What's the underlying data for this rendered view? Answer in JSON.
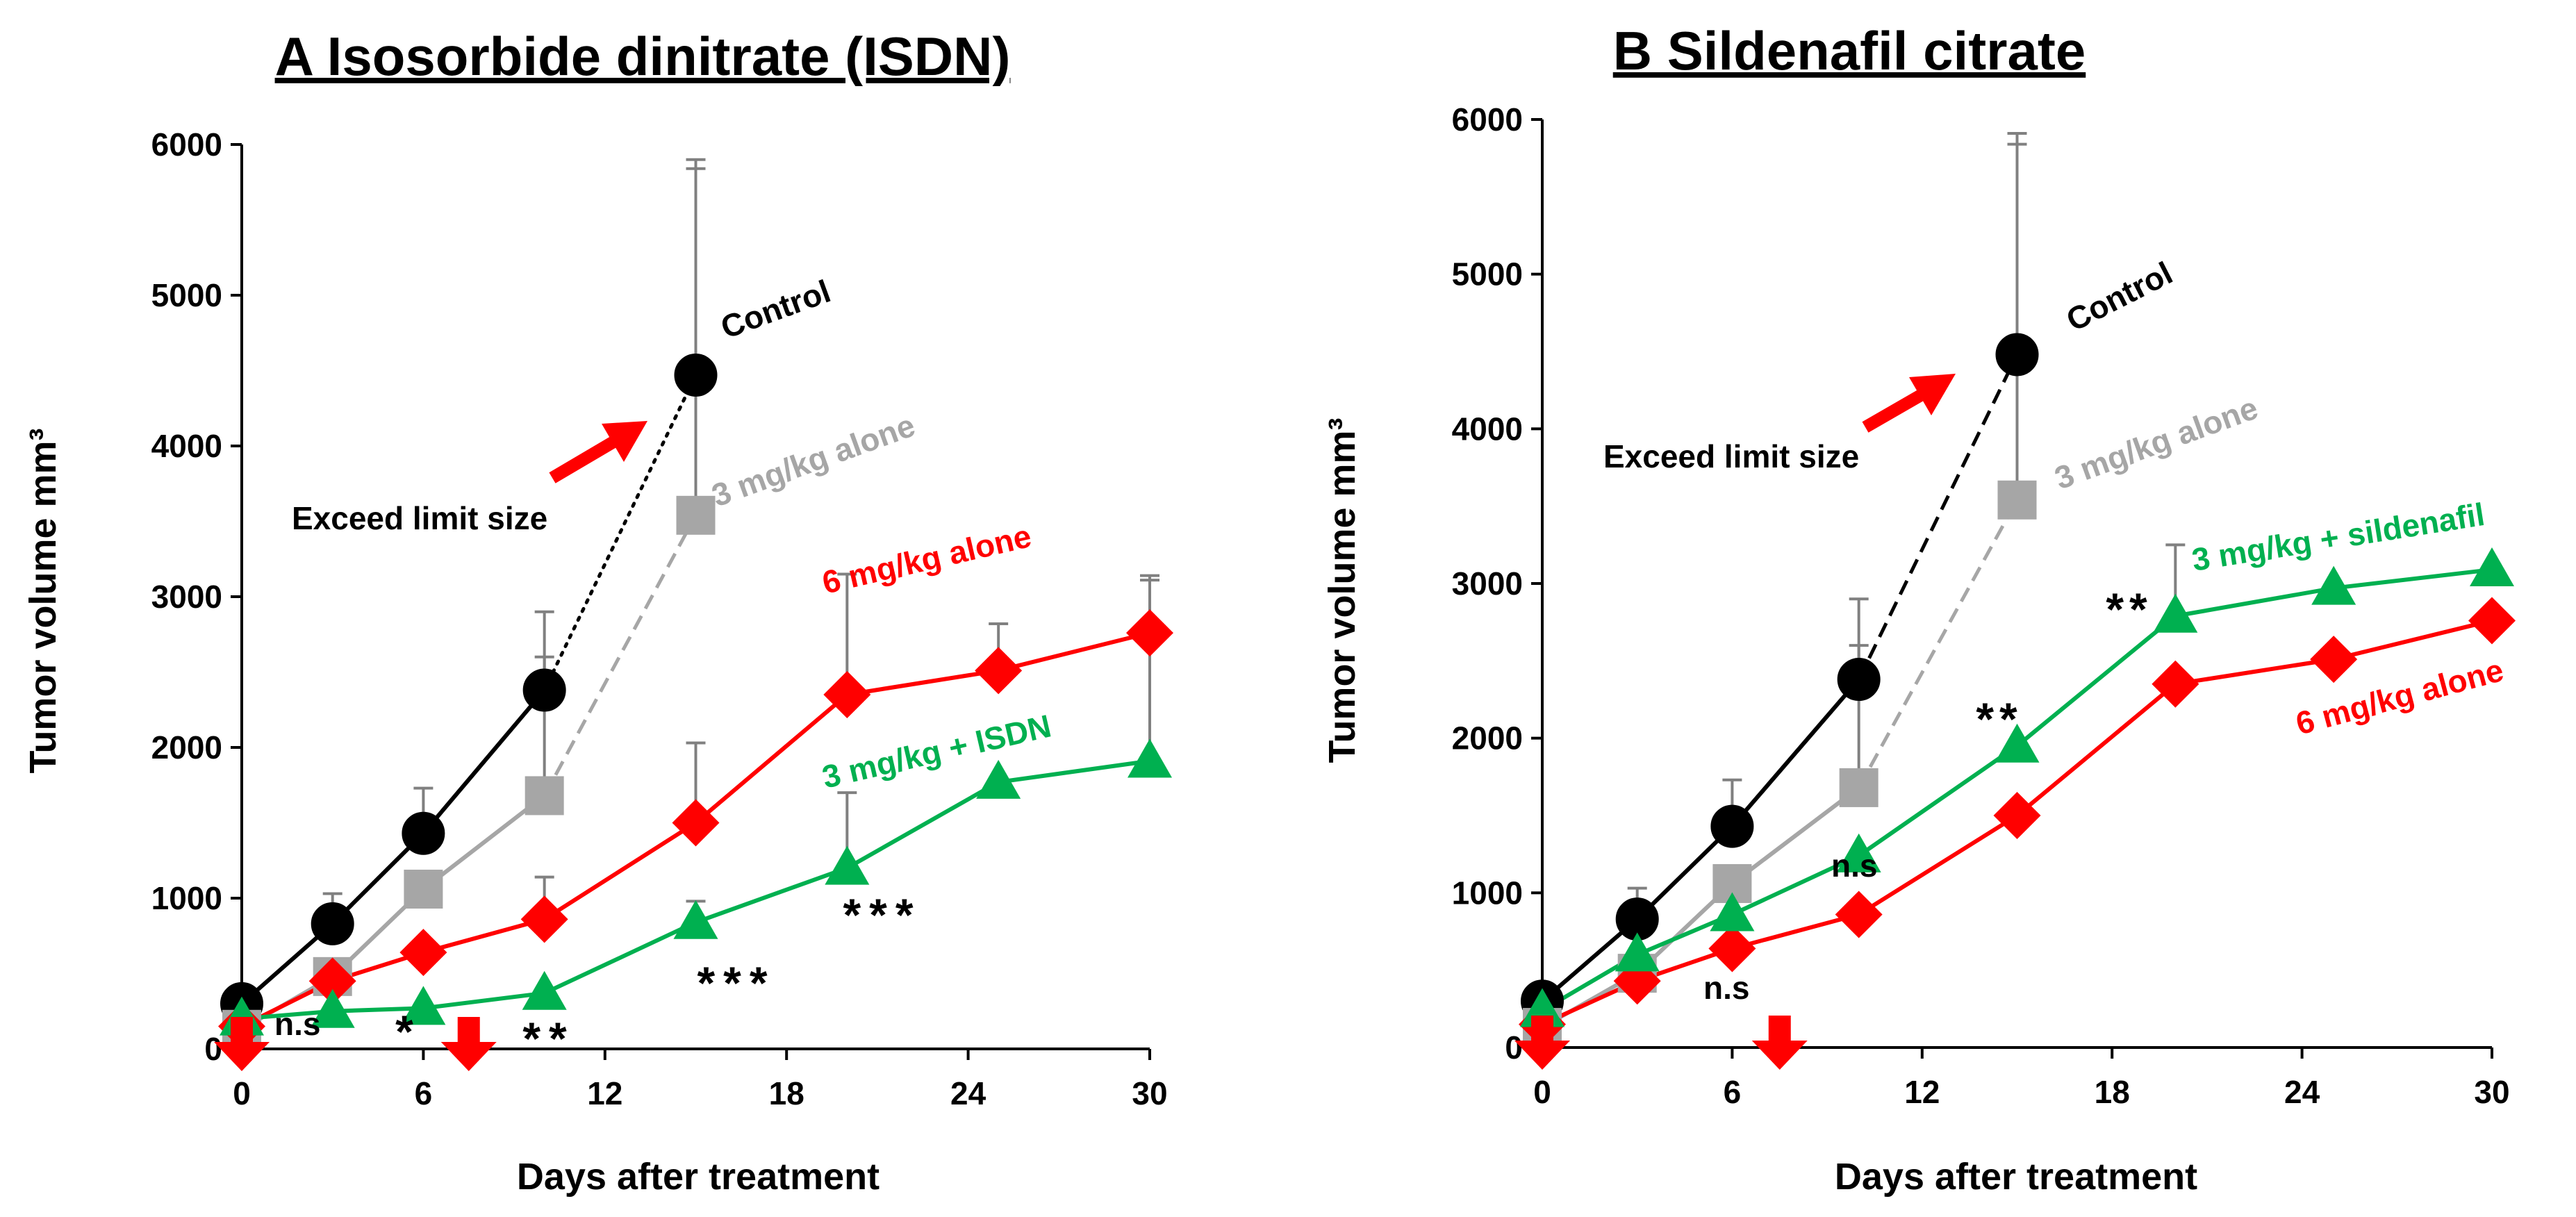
{
  "chart_data": [
    {
      "type": "line",
      "title": "A  Isosorbide dinitrate (ISDN)",
      "xlabel": "Days after treatment",
      "ylabel": "Tumor volume mm³",
      "xlim": [
        0,
        30
      ],
      "ylim": [
        0,
        6000
      ],
      "xticks": [
        "0",
        "6",
        "12",
        "18",
        "24",
        "30"
      ],
      "yticks": [
        "0",
        "1000",
        "2000",
        "3000",
        "4000",
        "5000",
        "6000"
      ],
      "series": [
        {
          "name": "Control",
          "color": "#000000",
          "marker": "circle",
          "points": [
            [
              0,
              300
            ],
            [
              3,
              830
            ],
            [
              6,
              1430
            ],
            [
              10,
              2380
            ],
            [
              15,
              4470
            ]
          ],
          "errors": [
            null,
            200,
            300,
            520,
            1430
          ],
          "dashed_from_index": 3,
          "dash": "dotted"
        },
        {
          "name": "3 mg/kg alone",
          "color": "#a6a6a6",
          "marker": "square",
          "points": [
            [
              0,
              130
            ],
            [
              3,
              480
            ],
            [
              6,
              1060
            ],
            [
              10,
              1680
            ],
            [
              15,
              3540
            ]
          ],
          "errors": [
            null,
            null,
            null,
            920,
            2300
          ],
          "dashed_from_index": 3,
          "dash": "dashed"
        },
        {
          "name": "6 mg/kg alone",
          "color": "#ff0000",
          "marker": "diamond",
          "points": [
            [
              0,
              150
            ],
            [
              3,
              450
            ],
            [
              6,
              640
            ],
            [
              10,
              860
            ],
            [
              15,
              1500
            ],
            [
              20,
              2350
            ],
            [
              25,
              2510
            ],
            [
              30,
              2760
            ]
          ],
          "errors": [
            null,
            null,
            null,
            280,
            530,
            800,
            310,
            380
          ]
        },
        {
          "name": "3 mg/kg + ISDN",
          "color": "#00b050",
          "marker": "triangle",
          "points": [
            [
              0,
              200
            ],
            [
              3,
              250
            ],
            [
              6,
              270
            ],
            [
              10,
              370
            ],
            [
              15,
              840
            ],
            [
              20,
              1200
            ],
            [
              25,
              1770
            ],
            [
              30,
              1910
            ]
          ],
          "errors": [
            null,
            null,
            null,
            null,
            140,
            500,
            null,
            1200
          ]
        }
      ],
      "annotations": [
        {
          "text": "Control",
          "color": "#000000",
          "near": "control-end"
        },
        {
          "text": "3 mg/kg alone",
          "color": "#a6a6a6",
          "near": "gray-end"
        },
        {
          "text": "6 mg/kg alone",
          "color": "#ff0000",
          "near": "red-mid"
        },
        {
          "text": "3 mg/kg + ISDN",
          "color": "#00b050",
          "near": "green-mid"
        },
        {
          "text": "Exceed limit size",
          "color": "#000000",
          "near": "red-arrow"
        },
        {
          "text": "n.s",
          "at_day": 3
        },
        {
          "text": "*",
          "at_day": 6
        },
        {
          "text": "**",
          "at_day": 10
        },
        {
          "text": "***",
          "at_day": 15
        },
        {
          "text": "***",
          "at_day": 20
        }
      ],
      "treatment_days": [
        0,
        7.5
      ]
    },
    {
      "type": "line",
      "title": "B  Sildenafil citrate",
      "xlabel": "Days after treatment",
      "ylabel": "Tumor volume mm³",
      "xlim": [
        0,
        30
      ],
      "ylim": [
        0,
        6000
      ],
      "xticks": [
        "0",
        "6",
        "12",
        "18",
        "24",
        "30"
      ],
      "yticks": [
        "0",
        "1000",
        "2000",
        "3000",
        "4000",
        "5000",
        "6000"
      ],
      "series": [
        {
          "name": "Control",
          "color": "#000000",
          "marker": "circle",
          "points": [
            [
              0,
              300
            ],
            [
              3,
              830
            ],
            [
              6,
              1430
            ],
            [
              10,
              2380
            ],
            [
              15,
              4480
            ]
          ],
          "errors": [
            null,
            200,
            300,
            520,
            1430
          ],
          "dashed_from_index": 3,
          "dash": "dashed"
        },
        {
          "name": "3 mg/kg alone",
          "color": "#a6a6a6",
          "marker": "square",
          "points": [
            [
              0,
              130
            ],
            [
              3,
              480
            ],
            [
              6,
              1060
            ],
            [
              10,
              1680
            ],
            [
              15,
              3540
            ]
          ],
          "errors": [
            null,
            null,
            null,
            920,
            2300
          ],
          "dashed_from_index": 3,
          "dash": "dashed"
        },
        {
          "name": "6 mg/kg alone",
          "color": "#ff0000",
          "marker": "diamond",
          "points": [
            [
              0,
              150
            ],
            [
              3,
              430
            ],
            [
              6,
              640
            ],
            [
              10,
              860
            ],
            [
              15,
              1500
            ],
            [
              20,
              2350
            ],
            [
              25,
              2510
            ],
            [
              30,
              2760
            ]
          ],
          "errors": []
        },
        {
          "name": "3 mg/kg + sildenafil",
          "color": "#00b050",
          "marker": "triangle",
          "points": [
            [
              0,
              240
            ],
            [
              3,
              600
            ],
            [
              6,
              860
            ],
            [
              10,
              1240
            ],
            [
              15,
              1950
            ],
            [
              20,
              2790
            ],
            [
              25,
              2970
            ],
            [
              30,
              3090
            ]
          ],
          "errors": [
            null,
            null,
            null,
            null,
            null,
            460,
            null,
            null
          ]
        }
      ],
      "annotations": [
        {
          "text": "Control",
          "color": "#000000",
          "near": "control-end"
        },
        {
          "text": "3 mg/kg alone",
          "color": "#a6a6a6",
          "near": "gray-end"
        },
        {
          "text": "3 mg/kg + sildenafil",
          "color": "#00b050",
          "near": "green-end"
        },
        {
          "text": "6 mg/kg alone",
          "color": "#ff0000",
          "near": "red-end"
        },
        {
          "text": "Exceed limit size",
          "color": "#000000",
          "near": "red-arrow"
        },
        {
          "text": "n.s",
          "at_day": 6
        },
        {
          "text": "n.s",
          "at_day": 10
        },
        {
          "text": "**",
          "at_day": 15
        },
        {
          "text": "**",
          "at_day": 19
        }
      ],
      "treatment_days": [
        0,
        7.5
      ]
    }
  ]
}
